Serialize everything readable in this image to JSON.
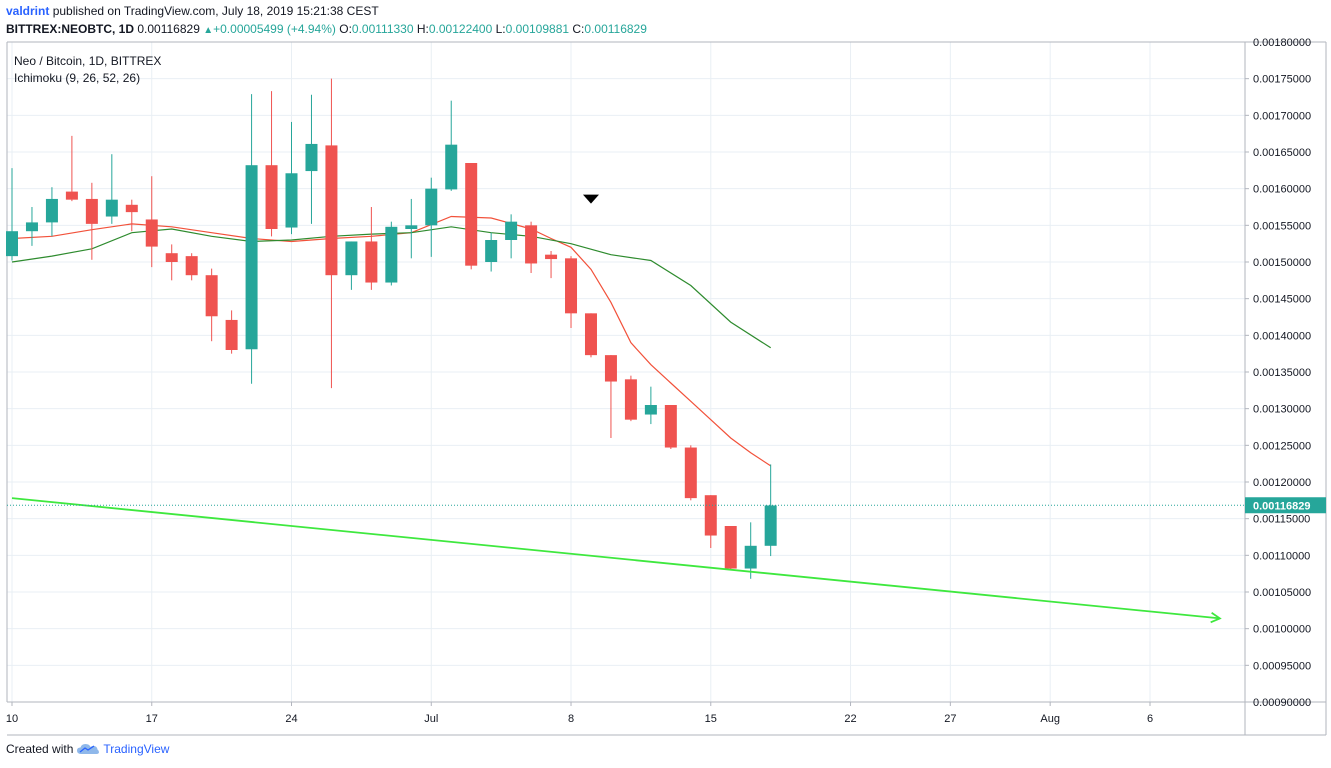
{
  "header": {
    "user": "valdrint",
    "published_text": "published on TradingView.com, July 18, 2019 15:21:38 CEST",
    "symbol": "BITTREX:NEOBTC, 1D",
    "last": "0.00116829",
    "change": "+0.00005499 (+4.94%)",
    "o_label": "O:",
    "o_value": "0.00111330",
    "h_label": "H:",
    "h_value": "0.00122400",
    "l_label": "L:",
    "l_value": "0.00109881",
    "c_label": "C:",
    "c_value": "0.00116829"
  },
  "legend": {
    "title": "Neo / Bitcoin, 1D, BITTREX",
    "indicator": "Ichimoku (9, 26, 52, 26)"
  },
  "footer": {
    "created_with": "Created with",
    "brand": "TradingView",
    "logo_icon": "tradingview-cloud-icon"
  },
  "colors": {
    "up": "#26a69a",
    "down": "#ef5350",
    "conversion_line": "#f2513a",
    "base_line": "#2e8b2e",
    "trendline": "#3ee83e",
    "price_line": "#26a69a",
    "grid": "#e9eff4"
  },
  "chart_data": {
    "type": "candlestick",
    "title": "Neo / Bitcoin, 1D, BITTREX",
    "ylim": [
      0.0009,
      0.0018
    ],
    "y_ticks": [
      "0.00180000",
      "0.00175000",
      "0.00170000",
      "0.00165000",
      "0.00160000",
      "0.00155000",
      "0.00150000",
      "0.00145000",
      "0.00140000",
      "0.00135000",
      "0.00130000",
      "0.00125000",
      "0.00120000",
      "0.00115000",
      "0.00110000",
      "0.00105000",
      "0.00100000",
      "0.00095000",
      "0.00090000"
    ],
    "x_ticks": [
      {
        "label": "10",
        "day": 0
      },
      {
        "label": "17",
        "day": 7
      },
      {
        "label": "24",
        "day": 14
      },
      {
        "label": "Jul",
        "day": 21
      },
      {
        "label": "8",
        "day": 28
      },
      {
        "label": "15",
        "day": 35
      },
      {
        "label": "22",
        "day": 42
      },
      {
        "label": "27",
        "day": 47
      },
      {
        "label": "Aug",
        "day": 52
      },
      {
        "label": "6",
        "day": 57
      }
    ],
    "xlim_days": [
      0,
      62
    ],
    "candles": [
      {
        "date": "2019-06-10",
        "o": 0.001508,
        "h": 0.001628,
        "l": 0.001502,
        "c": 0.001542
      },
      {
        "date": "2019-06-11",
        "o": 0.001542,
        "h": 0.001575,
        "l": 0.001522,
        "c": 0.001554
      },
      {
        "date": "2019-06-12",
        "o": 0.001554,
        "h": 0.001602,
        "l": 0.001535,
        "c": 0.001586
      },
      {
        "date": "2019-06-13",
        "o": 0.001596,
        "h": 0.001672,
        "l": 0.001583,
        "c": 0.001585
      },
      {
        "date": "2019-06-14",
        "o": 0.001586,
        "h": 0.001608,
        "l": 0.001503,
        "c": 0.001552
      },
      {
        "date": "2019-06-15",
        "o": 0.001562,
        "h": 0.001647,
        "l": 0.001552,
        "c": 0.001585
      },
      {
        "date": "2019-06-16",
        "o": 0.001578,
        "h": 0.001585,
        "l": 0.001542,
        "c": 0.001568
      },
      {
        "date": "2019-06-17",
        "o": 0.001558,
        "h": 0.001617,
        "l": 0.001493,
        "c": 0.001521
      },
      {
        "date": "2019-06-18",
        "o": 0.001512,
        "h": 0.001524,
        "l": 0.001475,
        "c": 0.0015
      },
      {
        "date": "2019-06-19",
        "o": 0.001508,
        "h": 0.001512,
        "l": 0.001475,
        "c": 0.001482
      },
      {
        "date": "2019-06-20",
        "o": 0.001482,
        "h": 0.001491,
        "l": 0.001392,
        "c": 0.001426
      },
      {
        "date": "2019-06-21",
        "o": 0.001421,
        "h": 0.001434,
        "l": 0.001375,
        "c": 0.00138
      },
      {
        "date": "2019-06-22",
        "o": 0.001381,
        "h": 0.001729,
        "l": 0.001334,
        "c": 0.001632
      },
      {
        "date": "2019-06-23",
        "o": 0.001632,
        "h": 0.001733,
        "l": 0.001535,
        "c": 0.001545
      },
      {
        "date": "2019-06-24",
        "o": 0.001547,
        "h": 0.001691,
        "l": 0.001538,
        "c": 0.001621
      },
      {
        "date": "2019-06-25",
        "o": 0.001624,
        "h": 0.001728,
        "l": 0.001552,
        "c": 0.001661
      },
      {
        "date": "2019-06-26",
        "o": 0.001659,
        "h": 0.00175,
        "l": 0.001328,
        "c": 0.001482
      },
      {
        "date": "2019-06-27",
        "o": 0.001482,
        "h": 0.001528,
        "l": 0.001462,
        "c": 0.001528
      },
      {
        "date": "2019-06-28",
        "o": 0.001528,
        "h": 0.001575,
        "l": 0.001462,
        "c": 0.001472
      },
      {
        "date": "2019-06-29",
        "o": 0.001472,
        "h": 0.001555,
        "l": 0.001468,
        "c": 0.001548
      },
      {
        "date": "2019-06-30",
        "o": 0.001545,
        "h": 0.001586,
        "l": 0.001505,
        "c": 0.00155
      },
      {
        "date": "2019-07-01",
        "o": 0.00155,
        "h": 0.001615,
        "l": 0.001507,
        "c": 0.0016
      },
      {
        "date": "2019-07-02",
        "o": 0.001599,
        "h": 0.00172,
        "l": 0.001597,
        "c": 0.00166
      },
      {
        "date": "2019-07-03",
        "o": 0.001635,
        "h": 0.001635,
        "l": 0.00149,
        "c": 0.001495
      },
      {
        "date": "2019-07-04",
        "o": 0.0015,
        "h": 0.00154,
        "l": 0.001487,
        "c": 0.00153
      },
      {
        "date": "2019-07-05",
        "o": 0.00153,
        "h": 0.001565,
        "l": 0.001505,
        "c": 0.001555
      },
      {
        "date": "2019-07-06",
        "o": 0.00155,
        "h": 0.001555,
        "l": 0.001485,
        "c": 0.001498
      },
      {
        "date": "2019-07-07",
        "o": 0.00151,
        "h": 0.001515,
        "l": 0.001478,
        "c": 0.001504
      },
      {
        "date": "2019-07-08",
        "o": 0.001505,
        "h": 0.001508,
        "l": 0.00141,
        "c": 0.00143
      },
      {
        "date": "2019-07-09",
        "o": 0.00143,
        "h": 0.00143,
        "l": 0.00137,
        "c": 0.001373
      },
      {
        "date": "2019-07-10",
        "o": 0.001373,
        "h": 0.001373,
        "l": 0.00126,
        "c": 0.001337
      },
      {
        "date": "2019-07-11",
        "o": 0.00134,
        "h": 0.001345,
        "l": 0.001283,
        "c": 0.001285
      },
      {
        "date": "2019-07-12",
        "o": 0.001292,
        "h": 0.00133,
        "l": 0.001279,
        "c": 0.001305
      },
      {
        "date": "2019-07-13",
        "o": 0.001305,
        "h": 0.001305,
        "l": 0.001245,
        "c": 0.001247
      },
      {
        "date": "2019-07-14",
        "o": 0.001247,
        "h": 0.00125,
        "l": 0.001175,
        "c": 0.001178
      },
      {
        "date": "2019-07-15",
        "o": 0.001182,
        "h": 0.001182,
        "l": 0.00111,
        "c": 0.001127
      },
      {
        "date": "2019-07-16",
        "o": 0.00114,
        "h": 0.00114,
        "l": 0.00108,
        "c": 0.001082
      },
      {
        "date": "2019-07-17",
        "o": 0.001082,
        "h": 0.001145,
        "l": 0.001068,
        "c": 0.001113
      },
      {
        "date": "2019-07-18",
        "o": 0.001113,
        "h": 0.001224,
        "l": 0.001099,
        "c": 0.001168
      }
    ],
    "series": [
      {
        "name": "Conversion Line",
        "x_days": [
          0,
          2,
          4,
          6,
          8,
          10,
          12,
          14,
          16,
          18,
          20,
          22,
          24,
          26,
          27,
          28,
          29,
          30,
          31,
          32,
          33,
          34,
          35,
          36,
          37,
          38
        ],
        "values": [
          0.001532,
          0.001535,
          0.001544,
          0.001552,
          0.001548,
          0.00154,
          0.001532,
          0.001528,
          0.001532,
          0.001535,
          0.00154,
          0.001562,
          0.00156,
          0.001545,
          0.001532,
          0.00152,
          0.00149,
          0.001445,
          0.00139,
          0.00136,
          0.001335,
          0.00131,
          0.001285,
          0.00126,
          0.00124,
          0.001222
        ]
      },
      {
        "name": "Base Line",
        "x_days": [
          0,
          2,
          4,
          6,
          8,
          10,
          12,
          14,
          16,
          18,
          20,
          22,
          24,
          26,
          28,
          30,
          32,
          34,
          36,
          38
        ],
        "values": [
          0.0015,
          0.001508,
          0.001518,
          0.00154,
          0.001545,
          0.001535,
          0.001528,
          0.00153,
          0.001535,
          0.001538,
          0.00154,
          0.001548,
          0.00154,
          0.001535,
          0.001525,
          0.00151,
          0.001502,
          0.001468,
          0.001418,
          0.001383
        ]
      }
    ],
    "trendline": {
      "start": {
        "day": 0,
        "value": 0.001178
      },
      "end": {
        "day": 60.5,
        "value": 0.001014
      }
    },
    "marker": {
      "type": "down-arrow",
      "day": 29,
      "value": 0.001585
    },
    "last_price": {
      "value": 0.00116829,
      "label": "0.00116829"
    }
  }
}
